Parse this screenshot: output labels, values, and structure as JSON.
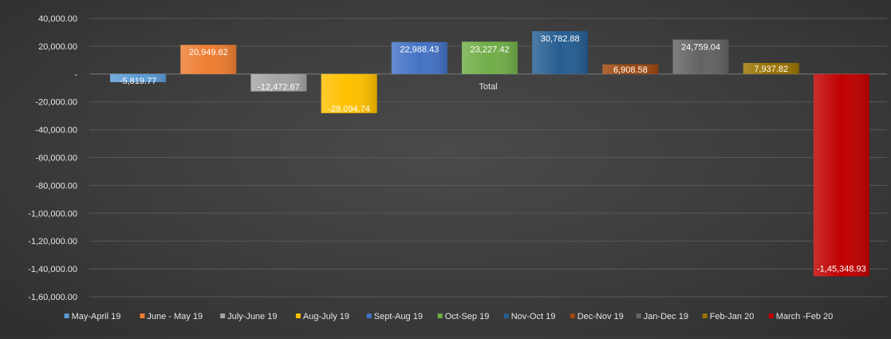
{
  "chart_data": {
    "type": "bar",
    "category_label": "Total",
    "series": [
      {
        "name": "May-April 19",
        "value": -5819.77,
        "label": "-5,819.77",
        "color": "#5b9bd5"
      },
      {
        "name": "June - May 19",
        "value": 20949.62,
        "label": "20,949.62",
        "color": "#ed7d31"
      },
      {
        "name": "July-June 19",
        "value": -12472.67,
        "label": "-12,472.67",
        "color": "#a5a5a5"
      },
      {
        "name": "Aug-July 19",
        "value": -28094.74,
        "label": "-28,094.74",
        "color": "#ffc000"
      },
      {
        "name": "Sept-Aug 19",
        "value": 22988.43,
        "label": "22,988.43",
        "color": "#4472c4"
      },
      {
        "name": "Oct-Sep 19",
        "value": 23227.42,
        "label": "23,227.42",
        "color": "#70ad47"
      },
      {
        "name": "Nov-Oct 19",
        "value": 30782.88,
        "label": "30,782.88",
        "color": "#255e91"
      },
      {
        "name": "Dec-Nov 19",
        "value": 6908.58,
        "label": "6,908.58",
        "color": "#9e480e"
      },
      {
        "name": "Jan-Dec 19",
        "value": 24759.04,
        "label": "24,759.04",
        "color": "#636363"
      },
      {
        "name": "Feb-Jan 20",
        "value": 7937.82,
        "label": "7,937.82",
        "color": "#997300"
      },
      {
        "name": "March -Feb 20",
        "value": -145348.93,
        "label": "-1,45,348.93",
        "color": "#c00000"
      }
    ],
    "yticks": [
      {
        "value": 40000,
        "label": "40,000.00"
      },
      {
        "value": 20000,
        "label": "20,000.00"
      },
      {
        "value": 0,
        "label": "-"
      },
      {
        "value": -20000,
        "label": "-20,000.00"
      },
      {
        "value": -40000,
        "label": "-40,000.00"
      },
      {
        "value": -60000,
        "label": "-60,000.00"
      },
      {
        "value": -80000,
        "label": "-80,000.00"
      },
      {
        "value": -100000,
        "label": "-1,00,000.00"
      },
      {
        "value": -120000,
        "label": "-1,20,000.00"
      },
      {
        "value": -140000,
        "label": "-1,40,000.00"
      },
      {
        "value": -160000,
        "label": "-1,60,000.00"
      }
    ],
    "ylim": [
      -160000,
      40000
    ],
    "grid": true,
    "legend_position": "bottom"
  }
}
